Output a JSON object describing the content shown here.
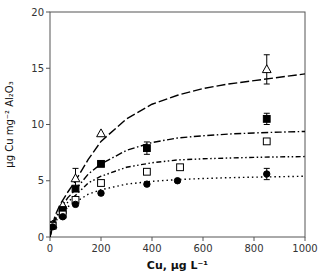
{
  "chart_data": {
    "type": "scatter",
    "xlabel": "Cu, μg L⁻¹",
    "ylabel": "μg Cu mg⁻² Al₂O₃",
    "xlim": [
      0,
      1000
    ],
    "ylim": [
      0,
      20
    ],
    "xticks": [
      0,
      200,
      400,
      600,
      800,
      1000
    ],
    "yticks": [
      0,
      5,
      10,
      15,
      20
    ],
    "grid": false,
    "color": "#000000",
    "series": [
      {
        "type": "scatter",
        "marker": "triangle-open",
        "x": [
          10,
          50,
          100,
          200,
          850
        ],
        "values": [
          1.1,
          2.8,
          5.2,
          9.2,
          14.9
        ],
        "errors": [
          null,
          null,
          0.9,
          null,
          1.3
        ]
      },
      {
        "type": "scatter",
        "marker": "square-filled",
        "x": [
          10,
          50,
          100,
          200,
          380,
          850
        ],
        "values": [
          1.05,
          2.4,
          4.3,
          6.5,
          7.9,
          10.5
        ],
        "errors": [
          null,
          null,
          null,
          null,
          0.55,
          0.5
        ]
      },
      {
        "type": "scatter",
        "marker": "square-open",
        "x": [
          10,
          50,
          100,
          200,
          380,
          510,
          850
        ],
        "values": [
          1.0,
          2.0,
          3.3,
          4.8,
          5.8,
          6.2,
          8.5
        ],
        "errors": [
          null,
          null,
          null,
          null,
          null,
          null,
          null
        ]
      },
      {
        "type": "scatter",
        "marker": "circle-filled",
        "x": [
          10,
          50,
          100,
          200,
          380,
          500,
          850
        ],
        "values": [
          0.9,
          1.8,
          2.9,
          3.9,
          4.7,
          5.0,
          5.6
        ],
        "errors": [
          null,
          null,
          null,
          null,
          null,
          null,
          0.5
        ]
      },
      {
        "type": "line",
        "line_style": "dashed",
        "x": [
          0,
          5,
          10,
          20,
          40,
          70,
          100,
          150,
          200,
          300,
          400,
          500,
          600,
          700,
          800,
          900,
          1000
        ],
        "values": [
          0,
          0.6,
          1.1,
          1.9,
          2.9,
          4.0,
          5.0,
          6.9,
          8.5,
          10.5,
          11.8,
          12.6,
          13.2,
          13.6,
          13.9,
          14.2,
          14.5
        ]
      },
      {
        "type": "line",
        "line_style": "dashdot",
        "x": [
          0,
          5,
          10,
          20,
          40,
          70,
          100,
          150,
          200,
          300,
          400,
          500,
          600,
          700,
          800,
          900,
          1000
        ],
        "values": [
          0,
          0.5,
          0.9,
          1.6,
          2.5,
          3.5,
          4.2,
          5.6,
          6.5,
          7.7,
          8.4,
          8.8,
          9.0,
          9.15,
          9.25,
          9.32,
          9.38
        ]
      },
      {
        "type": "line",
        "line_style": "dashdotdot",
        "x": [
          0,
          5,
          10,
          20,
          40,
          70,
          100,
          150,
          200,
          300,
          400,
          500,
          600,
          700,
          800,
          900,
          1000
        ],
        "values": [
          0,
          0.45,
          0.85,
          1.5,
          2.3,
          3.1,
          3.7,
          4.8,
          5.4,
          6.2,
          6.6,
          6.85,
          6.95,
          7.02,
          7.08,
          7.12,
          7.15
        ]
      },
      {
        "type": "line",
        "line_style": "dotted",
        "x": [
          0,
          5,
          10,
          20,
          40,
          70,
          100,
          150,
          200,
          300,
          400,
          500,
          600,
          700,
          800,
          900,
          1000
        ],
        "values": [
          0,
          0.4,
          0.75,
          1.3,
          2.0,
          2.7,
          3.1,
          3.8,
          4.2,
          4.7,
          4.95,
          5.1,
          5.2,
          5.27,
          5.32,
          5.36,
          5.4
        ]
      }
    ]
  }
}
